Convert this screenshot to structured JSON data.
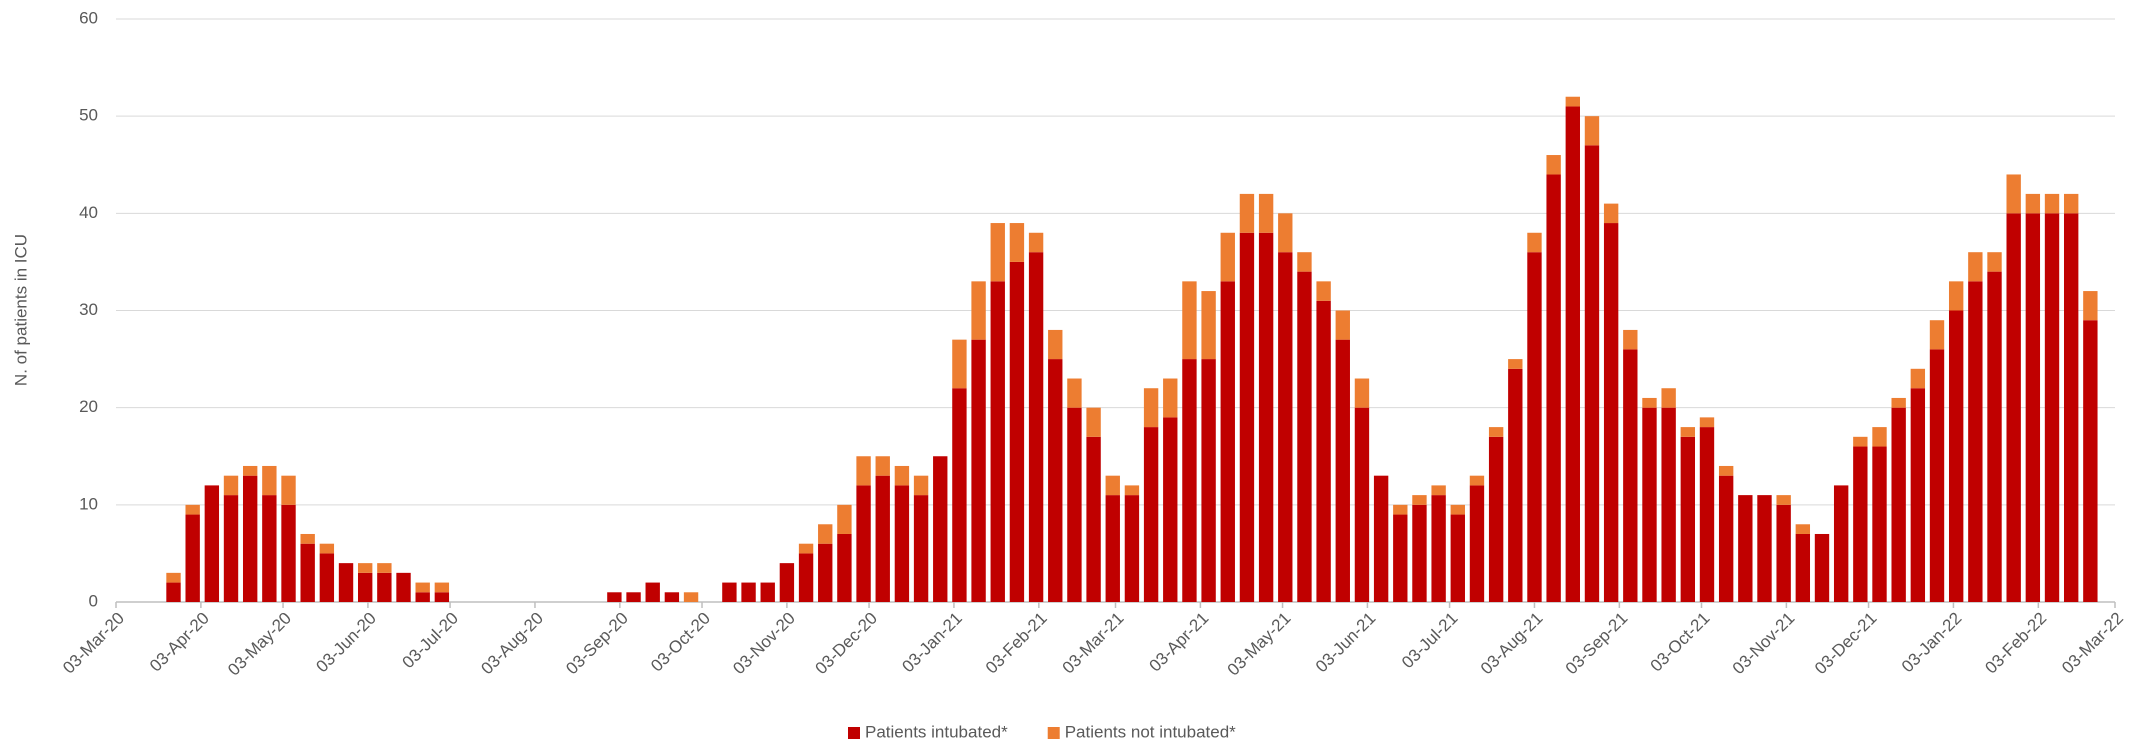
{
  "chart_data": {
    "type": "stacked-bar",
    "y_label": "N. of patients in ICU",
    "x": [
      "2020-03-24",
      "2020-03-31",
      "2020-04-07",
      "2020-04-14",
      "2020-04-21",
      "2020-04-28",
      "2020-05-05",
      "2020-05-12",
      "2020-05-19",
      "2020-05-26",
      "2020-06-02",
      "2020-06-09",
      "2020-06-16",
      "2020-06-23",
      "2020-06-30",
      "2020-07-07",
      "2020-07-14",
      "2020-07-21",
      "2020-07-28",
      "2020-08-04",
      "2020-08-11",
      "2020-08-18",
      "2020-08-25",
      "2020-09-01",
      "2020-09-08",
      "2020-09-15",
      "2020-09-22",
      "2020-09-29",
      "2020-10-06",
      "2020-10-13",
      "2020-10-20",
      "2020-10-27",
      "2020-11-03",
      "2020-11-10",
      "2020-11-17",
      "2020-11-24",
      "2020-12-01",
      "2020-12-08",
      "2020-12-15",
      "2020-12-22",
      "2020-12-29",
      "2021-01-05",
      "2021-01-12",
      "2021-01-19",
      "2021-01-26",
      "2021-02-02",
      "2021-02-09",
      "2021-02-16",
      "2021-02-23",
      "2021-03-02",
      "2021-03-09",
      "2021-03-16",
      "2021-03-23",
      "2021-03-30",
      "2021-04-06",
      "2021-04-13",
      "2021-04-20",
      "2021-04-27",
      "2021-05-04",
      "2021-05-11",
      "2021-05-18",
      "2021-05-25",
      "2021-06-01",
      "2021-06-08",
      "2021-06-15",
      "2021-06-22",
      "2021-06-29",
      "2021-07-06",
      "2021-07-13",
      "2021-07-20",
      "2021-07-27",
      "2021-08-03",
      "2021-08-10",
      "2021-08-17",
      "2021-08-24",
      "2021-08-31",
      "2021-09-07",
      "2021-09-14",
      "2021-09-21",
      "2021-09-28",
      "2021-10-05",
      "2021-10-12",
      "2021-10-19",
      "2021-10-26",
      "2021-11-02",
      "2021-11-09",
      "2021-11-16",
      "2021-11-23",
      "2021-11-30",
      "2021-12-07",
      "2021-12-14",
      "2021-12-21",
      "2021-12-28",
      "2022-01-04",
      "2022-01-11",
      "2022-01-18",
      "2022-01-25",
      "2022-02-01",
      "2022-02-08",
      "2022-02-15",
      "2022-02-22"
    ],
    "series": [
      {
        "name": "Patients intubated*",
        "color": "#c00000",
        "values": [
          2,
          9,
          12,
          11,
          13,
          11,
          10,
          6,
          5,
          4,
          3,
          3,
          3,
          1,
          1,
          0,
          0,
          0,
          0,
          0,
          0,
          0,
          0,
          1,
          1,
          2,
          1,
          0,
          0,
          2,
          2,
          2,
          4,
          5,
          6,
          7,
          12,
          13,
          12,
          11,
          15,
          22,
          27,
          33,
          35,
          36,
          25,
          20,
          17,
          11,
          11,
          18,
          19,
          25,
          25,
          33,
          38,
          38,
          36,
          34,
          31,
          27,
          20,
          13,
          9,
          10,
          11,
          9,
          12,
          17,
          24,
          36,
          44,
          51,
          47,
          39,
          26,
          20,
          20,
          17,
          18,
          13,
          11,
          11,
          10,
          7,
          7,
          12,
          16,
          16,
          20,
          22,
          26,
          30,
          33,
          34,
          40,
          40,
          40,
          40,
          29
        ]
      },
      {
        "name": "Patients not intubated*",
        "color": "#ed7d31",
        "values": [
          1,
          1,
          0,
          2,
          1,
          3,
          3,
          1,
          1,
          0,
          1,
          1,
          0,
          1,
          1,
          0,
          0,
          0,
          0,
          0,
          0,
          0,
          0,
          0,
          0,
          0,
          0,
          1,
          0,
          0,
          0,
          0,
          0,
          1,
          2,
          3,
          3,
          2,
          2,
          2,
          0,
          5,
          6,
          6,
          4,
          2,
          3,
          3,
          3,
          2,
          1,
          4,
          4,
          8,
          7,
          5,
          4,
          4,
          4,
          2,
          2,
          3,
          3,
          0,
          1,
          1,
          1,
          1,
          1,
          1,
          1,
          2,
          2,
          1,
          3,
          2,
          2,
          1,
          2,
          1,
          1,
          1,
          0,
          0,
          1,
          1,
          0,
          0,
          1,
          2,
          1,
          2,
          3,
          3,
          3,
          2,
          4,
          2,
          2,
          2,
          3
        ]
      }
    ],
    "xlim": [
      "2020-03-03",
      "2022-03-03"
    ],
    "xticks": [
      {
        "value": "2020-03-03",
        "label": "03-Mar-20"
      },
      {
        "value": "2020-04-03",
        "label": "03-Apr-20"
      },
      {
        "value": "2020-05-03",
        "label": "03-May-20"
      },
      {
        "value": "2020-06-03",
        "label": "03-Jun-20"
      },
      {
        "value": "2020-07-03",
        "label": "03-Jul-20"
      },
      {
        "value": "2020-08-03",
        "label": "03-Aug-20"
      },
      {
        "value": "2020-09-03",
        "label": "03-Sep-20"
      },
      {
        "value": "2020-10-03",
        "label": "03-Oct-20"
      },
      {
        "value": "2020-11-03",
        "label": "03-Nov-20"
      },
      {
        "value": "2020-12-03",
        "label": "03-Dec-20"
      },
      {
        "value": "2021-01-03",
        "label": "03-Jan-21"
      },
      {
        "value": "2021-02-03",
        "label": "03-Feb-21"
      },
      {
        "value": "2021-03-03",
        "label": "03-Mar-21"
      },
      {
        "value": "2021-04-03",
        "label": "03-Apr-21"
      },
      {
        "value": "2021-05-03",
        "label": "03-May-21"
      },
      {
        "value": "2021-06-03",
        "label": "03-Jun-21"
      },
      {
        "value": "2021-07-03",
        "label": "03-Jul-21"
      },
      {
        "value": "2021-08-03",
        "label": "03-Aug-21"
      },
      {
        "value": "2021-09-03",
        "label": "03-Sep-21"
      },
      {
        "value": "2021-10-03",
        "label": "03-Oct-21"
      },
      {
        "value": "2021-11-03",
        "label": "03-Nov-21"
      },
      {
        "value": "2021-12-03",
        "label": "03-Dec-21"
      },
      {
        "value": "2022-01-03",
        "label": "03-Jan-22"
      },
      {
        "value": "2022-02-03",
        "label": "03-Feb-22"
      },
      {
        "value": "2022-03-03",
        "label": "03-Mar-22"
      }
    ],
    "ylim": [
      0,
      60
    ],
    "yticks": [
      0,
      10,
      20,
      30,
      40,
      50,
      60
    ],
    "grid": true,
    "legend": "bottom"
  }
}
